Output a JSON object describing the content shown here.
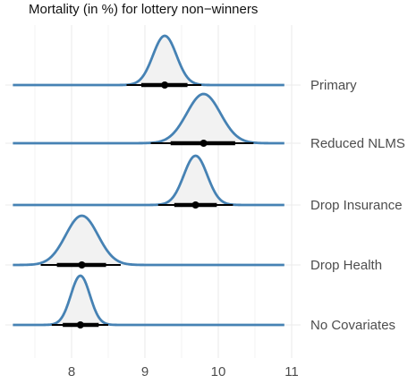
{
  "chart_data": {
    "type": "area",
    "title": "Mortality (in %) for lottery non−winners",
    "xlabel": "",
    "ylabel": "",
    "xlim": [
      7.2,
      10.9
    ],
    "x_ticks": [
      "8",
      "9",
      "10",
      "11"
    ],
    "x_tick_values": [
      8,
      9,
      10,
      11
    ],
    "grid": true,
    "legend": "none",
    "colors": {
      "density_line": "#4682b4",
      "density_fill": "#f2f2f2",
      "interval": "#000000",
      "grid": "#ebebeb"
    },
    "series": [
      {
        "name": "No Covariates",
        "mean": 8.12,
        "sd": 0.13,
        "interval_66": [
          7.88,
          8.37
        ],
        "interval_95": [
          7.73,
          8.5
        ],
        "point": 8.12
      },
      {
        "name": "Drop Health",
        "mean": 8.14,
        "sd": 0.22,
        "interval_66": [
          7.8,
          8.47
        ],
        "interval_95": [
          7.58,
          8.67
        ],
        "point": 8.14
      },
      {
        "name": "Drop Insurance",
        "mean": 9.69,
        "sd": 0.16,
        "interval_66": [
          9.4,
          9.98
        ],
        "interval_95": [
          9.18,
          10.2
        ],
        "point": 9.69
      },
      {
        "name": "Reduced NLMS",
        "mean": 9.8,
        "sd": 0.23,
        "interval_66": [
          9.35,
          10.23
        ],
        "interval_95": [
          9.08,
          10.48
        ],
        "point": 9.8
      },
      {
        "name": "Primary",
        "mean": 9.27,
        "sd": 0.16,
        "interval_66": [
          8.95,
          9.58
        ],
        "interval_95": [
          8.75,
          9.77
        ],
        "point": 9.27
      }
    ]
  }
}
